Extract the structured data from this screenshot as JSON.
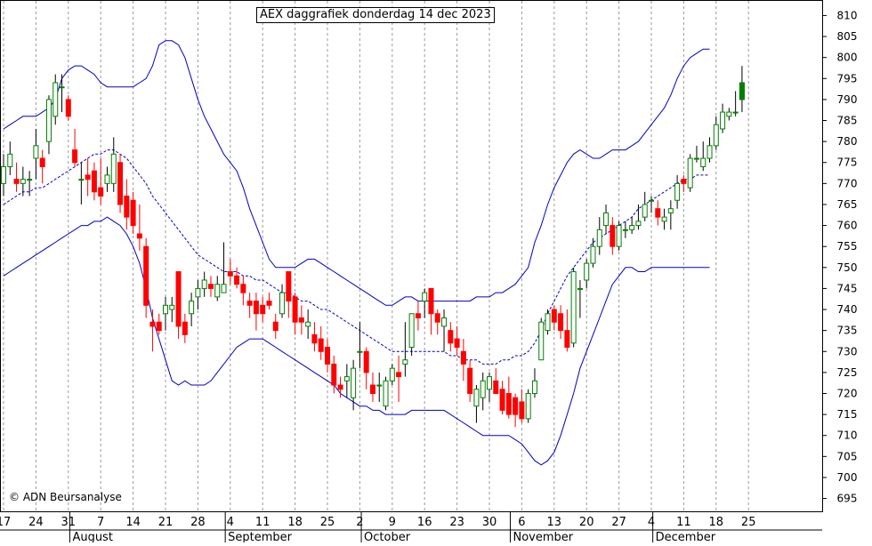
{
  "chart_data": {
    "type": "candlestick",
    "title": "AEX daggrafiek donderdag 14 dec 2023",
    "copyright": "© ADN Beursanalyse",
    "ylim": [
      693,
      812
    ],
    "y_ticks": [
      695,
      700,
      705,
      710,
      715,
      720,
      725,
      730,
      735,
      740,
      745,
      750,
      755,
      760,
      765,
      770,
      775,
      780,
      785,
      790,
      795,
      800,
      805,
      810
    ],
    "x_day_labels": [
      {
        "label": "17",
        "index": 0
      },
      {
        "label": "24",
        "index": 5
      },
      {
        "label": "31",
        "index": 10
      },
      {
        "label": "7",
        "index": 15
      },
      {
        "label": "14",
        "index": 20
      },
      {
        "label": "21",
        "index": 25
      },
      {
        "label": "28",
        "index": 30
      },
      {
        "label": "4",
        "index": 35
      },
      {
        "label": "11",
        "index": 40
      },
      {
        "label": "18",
        "index": 45
      },
      {
        "label": "25",
        "index": 50
      },
      {
        "label": "2",
        "index": 55
      },
      {
        "label": "9",
        "index": 60
      },
      {
        "label": "16",
        "index": 65
      },
      {
        "label": "23",
        "index": 70
      },
      {
        "label": "30",
        "index": 75
      },
      {
        "label": "6",
        "index": 80
      },
      {
        "label": "13",
        "index": 85
      },
      {
        "label": "20",
        "index": 90
      },
      {
        "label": "27",
        "index": 95
      },
      {
        "label": "4",
        "index": 100
      },
      {
        "label": "11",
        "index": 105
      },
      {
        "label": "18",
        "index": 110
      },
      {
        "label": "25",
        "index": 115
      }
    ],
    "month_labels": [
      {
        "label": "August",
        "index": 10.5
      },
      {
        "label": "September",
        "index": 34.5
      },
      {
        "label": "October",
        "index": 55.5
      },
      {
        "label": "November",
        "index": 78.5
      },
      {
        "label": "December",
        "index": 100.5
      }
    ],
    "candles": [
      {
        "o": 770,
        "h": 777,
        "l": 767,
        "c": 774
      },
      {
        "o": 774,
        "h": 780,
        "l": 772,
        "c": 777
      },
      {
        "o": 771,
        "h": 775,
        "l": 768,
        "c": 770
      },
      {
        "o": 770,
        "h": 774,
        "l": 767,
        "c": 771
      },
      {
        "o": 771,
        "h": 773,
        "l": 767,
        "c": 771
      },
      {
        "o": 776,
        "h": 783,
        "l": 771,
        "c": 779
      },
      {
        "o": 776,
        "h": 778,
        "l": 770,
        "c": 774
      },
      {
        "o": 780,
        "h": 791,
        "l": 777,
        "c": 790
      },
      {
        "o": 786,
        "h": 796,
        "l": 784,
        "c": 794
      },
      {
        "o": 793,
        "h": 796,
        "l": 787,
        "c": 793
      },
      {
        "o": 790,
        "h": 791,
        "l": 785,
        "c": 786
      },
      {
        "o": 778,
        "h": 783,
        "l": 774,
        "c": 775
      },
      {
        "o": 771,
        "h": 775,
        "l": 765,
        "c": 771
      },
      {
        "o": 772,
        "h": 776,
        "l": 767,
        "c": 771
      },
      {
        "o": 773,
        "h": 775,
        "l": 766,
        "c": 768
      },
      {
        "o": 769,
        "h": 776,
        "l": 765,
        "c": 767
      },
      {
        "o": 770,
        "h": 774,
        "l": 768,
        "c": 772
      },
      {
        "o": 770,
        "h": 781,
        "l": 768,
        "c": 777
      },
      {
        "o": 775,
        "h": 777,
        "l": 763,
        "c": 765
      },
      {
        "o": 767,
        "h": 771,
        "l": 759,
        "c": 762
      },
      {
        "o": 766,
        "h": 768,
        "l": 758,
        "c": 760
      },
      {
        "o": 758,
        "h": 765,
        "l": 754,
        "c": 757
      },
      {
        "o": 755,
        "h": 757,
        "l": 738,
        "c": 741
      },
      {
        "o": 737,
        "h": 740,
        "l": 730,
        "c": 736
      },
      {
        "o": 737,
        "h": 739,
        "l": 734,
        "c": 735
      },
      {
        "o": 739,
        "h": 743,
        "l": 735,
        "c": 741
      },
      {
        "o": 740,
        "h": 743,
        "l": 737,
        "c": 741
      },
      {
        "o": 749,
        "h": 749,
        "l": 733,
        "c": 736
      },
      {
        "o": 737,
        "h": 739,
        "l": 732,
        "c": 734
      },
      {
        "o": 739,
        "h": 744,
        "l": 736,
        "c": 742
      },
      {
        "o": 743,
        "h": 747,
        "l": 740,
        "c": 745
      },
      {
        "o": 745,
        "h": 749,
        "l": 743,
        "c": 747
      },
      {
        "o": 746,
        "h": 748,
        "l": 743,
        "c": 745
      },
      {
        "o": 743,
        "h": 748,
        "l": 742,
        "c": 746
      },
      {
        "o": 744,
        "h": 756,
        "l": 744,
        "c": 746
      },
      {
        "o": 749,
        "h": 752,
        "l": 746,
        "c": 748
      },
      {
        "o": 748,
        "h": 750,
        "l": 745,
        "c": 746
      },
      {
        "o": 746,
        "h": 748,
        "l": 741,
        "c": 744
      },
      {
        "o": 742,
        "h": 744,
        "l": 738,
        "c": 741
      },
      {
        "o": 742,
        "h": 744,
        "l": 735,
        "c": 739
      },
      {
        "o": 741,
        "h": 743,
        "l": 737,
        "c": 739
      },
      {
        "o": 742,
        "h": 744,
        "l": 740,
        "c": 741
      },
      {
        "o": 737,
        "h": 739,
        "l": 733,
        "c": 735
      },
      {
        "o": 739,
        "h": 746,
        "l": 738,
        "c": 744
      },
      {
        "o": 749,
        "h": 749,
        "l": 738,
        "c": 742
      },
      {
        "o": 743,
        "h": 744,
        "l": 734,
        "c": 737
      },
      {
        "o": 738,
        "h": 741,
        "l": 734,
        "c": 737
      },
      {
        "o": 736,
        "h": 740,
        "l": 733,
        "c": 737
      },
      {
        "o": 734,
        "h": 737,
        "l": 730,
        "c": 732
      },
      {
        "o": 733,
        "h": 736,
        "l": 728,
        "c": 730
      },
      {
        "o": 731,
        "h": 733,
        "l": 725,
        "c": 727
      },
      {
        "o": 727,
        "h": 729,
        "l": 720,
        "c": 722
      },
      {
        "o": 722,
        "h": 724,
        "l": 719,
        "c": 721
      },
      {
        "o": 723,
        "h": 727,
        "l": 719,
        "c": 724
      },
      {
        "o": 719,
        "h": 728,
        "l": 716,
        "c": 726
      },
      {
        "o": 730,
        "h": 737,
        "l": 726,
        "c": 730
      },
      {
        "o": 730,
        "h": 731,
        "l": 721,
        "c": 725
      },
      {
        "o": 722,
        "h": 725,
        "l": 718,
        "c": 720
      },
      {
        "o": 722,
        "h": 725,
        "l": 718,
        "c": 722
      },
      {
        "o": 717,
        "h": 724,
        "l": 716,
        "c": 723
      },
      {
        "o": 723,
        "h": 727,
        "l": 722,
        "c": 726
      },
      {
        "o": 725,
        "h": 729,
        "l": 718,
        "c": 724
      },
      {
        "o": 727,
        "h": 737,
        "l": 724,
        "c": 728
      },
      {
        "o": 731,
        "h": 739,
        "l": 729,
        "c": 739
      },
      {
        "o": 739,
        "h": 742,
        "l": 735,
        "c": 738
      },
      {
        "o": 742,
        "h": 745,
        "l": 738,
        "c": 744
      },
      {
        "o": 745,
        "h": 745,
        "l": 734,
        "c": 739
      },
      {
        "o": 739,
        "h": 740,
        "l": 734,
        "c": 737
      },
      {
        "o": 736,
        "h": 740,
        "l": 730,
        "c": 738
      },
      {
        "o": 735,
        "h": 737,
        "l": 730,
        "c": 732
      },
      {
        "o": 733,
        "h": 736,
        "l": 729,
        "c": 731
      },
      {
        "o": 730,
        "h": 733,
        "l": 723,
        "c": 727
      },
      {
        "o": 726,
        "h": 728,
        "l": 718,
        "c": 720
      },
      {
        "o": 717,
        "h": 722,
        "l": 713,
        "c": 721
      },
      {
        "o": 719,
        "h": 725,
        "l": 716,
        "c": 723
      },
      {
        "o": 721,
        "h": 725,
        "l": 718,
        "c": 724
      },
      {
        "o": 723,
        "h": 726,
        "l": 720,
        "c": 720
      },
      {
        "o": 721,
        "h": 723,
        "l": 715,
        "c": 716
      },
      {
        "o": 720,
        "h": 724,
        "l": 714,
        "c": 715
      },
      {
        "o": 719,
        "h": 720,
        "l": 712,
        "c": 715
      },
      {
        "o": 718,
        "h": 721,
        "l": 713,
        "c": 714
      },
      {
        "o": 714,
        "h": 721,
        "l": 713,
        "c": 720
      },
      {
        "o": 720,
        "h": 726,
        "l": 719,
        "c": 723
      },
      {
        "o": 728,
        "h": 738,
        "l": 728,
        "c": 737
      },
      {
        "o": 735,
        "h": 740,
        "l": 734,
        "c": 739
      },
      {
        "o": 740,
        "h": 741,
        "l": 735,
        "c": 737
      },
      {
        "o": 739,
        "h": 741,
        "l": 733,
        "c": 735
      },
      {
        "o": 735,
        "h": 740,
        "l": 730,
        "c": 731
      },
      {
        "o": 732,
        "h": 750,
        "l": 731,
        "c": 749
      },
      {
        "o": 745,
        "h": 747,
        "l": 738,
        "c": 745
      },
      {
        "o": 747,
        "h": 752,
        "l": 745,
        "c": 751
      },
      {
        "o": 751,
        "h": 757,
        "l": 750,
        "c": 755
      },
      {
        "o": 755,
        "h": 762,
        "l": 753,
        "c": 759
      },
      {
        "o": 760,
        "h": 765,
        "l": 758,
        "c": 763
      },
      {
        "o": 760,
        "h": 762,
        "l": 753,
        "c": 755
      },
      {
        "o": 755,
        "h": 761,
        "l": 754,
        "c": 760
      },
      {
        "o": 759,
        "h": 761,
        "l": 757,
        "c": 759
      },
      {
        "o": 759,
        "h": 762,
        "l": 758,
        "c": 760
      },
      {
        "o": 760,
        "h": 765,
        "l": 759,
        "c": 761
      },
      {
        "o": 762,
        "h": 768,
        "l": 761,
        "c": 765
      },
      {
        "o": 766,
        "h": 767,
        "l": 763,
        "c": 766
      },
      {
        "o": 764,
        "h": 766,
        "l": 760,
        "c": 762
      },
      {
        "o": 761,
        "h": 764,
        "l": 759,
        "c": 762
      },
      {
        "o": 763,
        "h": 766,
        "l": 759,
        "c": 764
      },
      {
        "o": 766,
        "h": 772,
        "l": 764,
        "c": 770
      },
      {
        "o": 771,
        "h": 772,
        "l": 768,
        "c": 770
      },
      {
        "o": 769,
        "h": 777,
        "l": 768,
        "c": 776
      },
      {
        "o": 776,
        "h": 779,
        "l": 775,
        "c": 776
      },
      {
        "o": 774,
        "h": 780,
        "l": 773,
        "c": 776
      },
      {
        "o": 776,
        "h": 781,
        "l": 775,
        "c": 779
      },
      {
        "o": 779,
        "h": 786,
        "l": 778,
        "c": 784
      },
      {
        "o": 783,
        "h": 789,
        "l": 782,
        "c": 787
      },
      {
        "o": 786,
        "h": 788,
        "l": 785,
        "c": 787
      },
      {
        "o": 787,
        "h": 792,
        "l": 786,
        "c": 787
      },
      {
        "o": 790,
        "h": 798,
        "l": 787,
        "c": 794
      }
    ],
    "bollinger": {
      "upper": [
        783,
        784,
        785,
        786,
        786,
        786,
        787,
        788,
        790,
        795,
        797,
        798,
        798,
        797,
        796,
        794,
        793,
        793,
        793,
        793,
        793,
        794,
        795,
        798,
        803,
        804,
        804,
        803,
        800,
        795,
        790,
        786,
        783,
        780,
        777,
        775,
        773,
        769,
        764,
        760,
        756,
        752,
        750,
        750,
        750,
        750,
        751,
        752,
        752,
        751,
        750,
        749,
        748,
        747,
        746,
        745,
        744,
        743,
        742,
        741,
        741,
        742,
        743,
        743,
        742,
        742,
        742,
        742,
        742,
        742,
        742,
        742,
        742,
        743,
        743,
        743,
        744,
        744,
        745,
        746,
        748,
        750,
        756,
        760,
        765,
        769,
        772,
        775,
        777,
        778,
        777,
        776,
        776,
        777,
        778,
        778,
        778,
        779,
        780,
        782,
        784,
        786,
        788,
        791,
        795,
        798,
        800,
        801,
        802,
        802
      ],
      "middle": [
        765,
        766,
        767,
        768,
        768,
        769,
        769,
        770,
        771,
        772,
        773,
        774,
        775,
        776,
        777,
        777,
        778,
        778,
        777,
        776,
        774,
        772,
        770,
        767,
        765,
        763,
        761,
        759,
        757,
        755,
        753,
        752,
        751,
        750,
        749,
        749,
        749,
        748,
        748,
        747,
        747,
        746,
        745,
        744,
        744,
        743,
        742,
        742,
        741,
        740,
        740,
        739,
        738,
        737,
        736,
        735,
        734,
        733,
        732,
        731,
        730,
        730,
        730,
        730,
        730,
        730,
        730,
        730,
        730,
        729,
        729,
        728,
        728,
        728,
        727,
        727,
        727,
        728,
        728,
        729,
        729,
        730,
        732,
        735,
        739,
        742,
        745,
        748,
        750,
        752,
        754,
        756,
        757,
        758,
        759,
        760,
        761,
        762,
        764,
        765,
        766,
        767,
        768,
        769,
        770,
        771,
        771,
        772,
        772,
        772
      ],
      "lower": [
        748,
        749,
        750,
        751,
        752,
        753,
        754,
        755,
        756,
        757,
        758,
        759,
        760,
        760,
        761,
        761,
        762,
        761,
        760,
        758,
        755,
        751,
        745,
        738,
        733,
        728,
        723,
        722,
        723,
        722,
        722,
        722,
        723,
        725,
        727,
        729,
        731,
        732,
        733,
        733,
        733,
        732,
        731,
        730,
        729,
        728,
        727,
        726,
        725,
        724,
        723,
        722,
        720,
        719,
        718,
        717,
        717,
        716,
        716,
        715,
        715,
        715,
        715,
        716,
        716,
        716,
        716,
        716,
        716,
        715,
        714,
        713,
        712,
        711,
        710,
        710,
        710,
        710,
        710,
        709,
        708,
        706,
        704,
        703,
        704,
        706,
        710,
        715,
        720,
        726,
        730,
        734,
        738,
        742,
        746,
        748,
        750,
        750,
        749,
        749,
        750,
        750,
        750,
        750,
        750,
        750,
        750,
        750,
        750,
        750
      ]
    }
  }
}
